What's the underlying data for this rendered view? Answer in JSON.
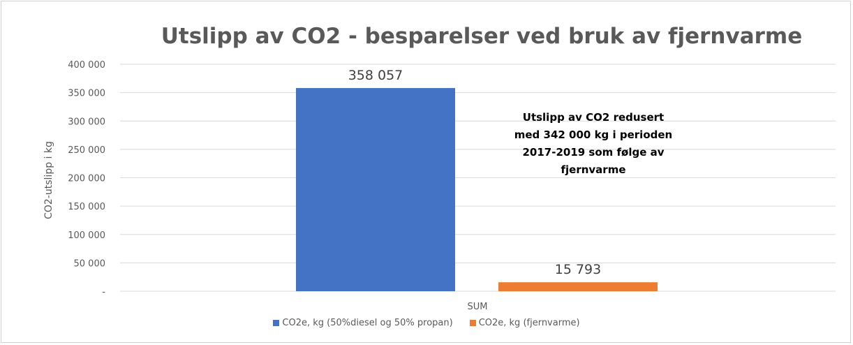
{
  "chart_data": {
    "type": "bar",
    "title": "Utslipp av CO2 - besparelser ved bruk av fjernvarme",
    "xlabel": "",
    "ylabel": "CO2-utslipp i kg",
    "categories": [
      "SUM"
    ],
    "ylim": [
      0,
      400000
    ],
    "yticks": [
      0,
      50000,
      100000,
      150000,
      200000,
      250000,
      300000,
      350000,
      400000
    ],
    "ytick_labels": [
      "-",
      "50 000",
      "100 000",
      "150 000",
      "200 000",
      "250 000",
      "300 000",
      "350 000",
      "400 000"
    ],
    "grid": true,
    "legend_position": "bottom",
    "series": [
      {
        "name": "CO2e, kg (50%diesel og 50% propan)",
        "values": [
          358057
        ],
        "label": "358 057",
        "color": "#4472C4"
      },
      {
        "name": "CO2e, kg (fjernvarme)",
        "values": [
          15793
        ],
        "label": "15 793",
        "color": "#ED7D31"
      }
    ],
    "annotation": "Utslipp av CO2 redusert\nmed 342 000 kg i perioden\n2017-2019 som følge av\nfjernvarme"
  }
}
